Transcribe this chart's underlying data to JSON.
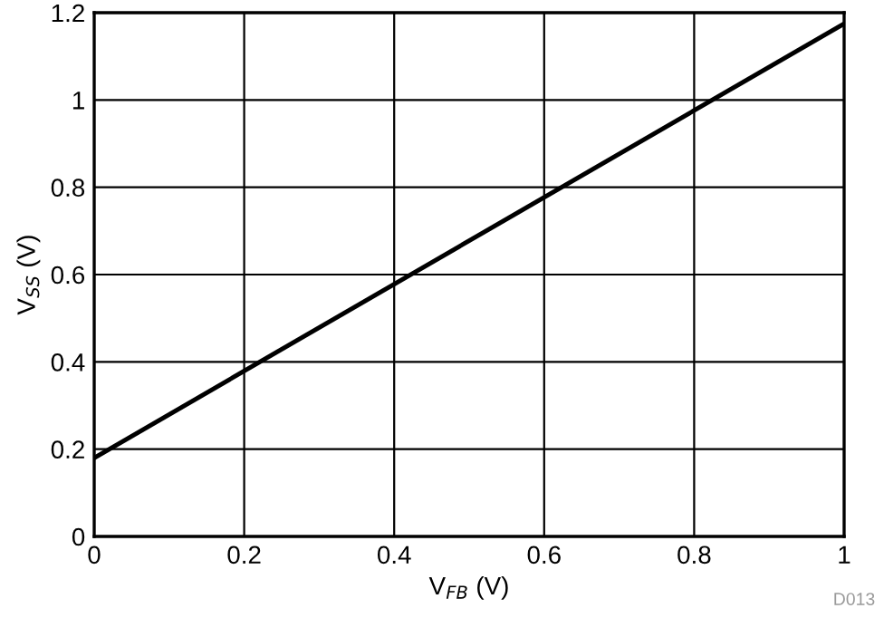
{
  "chart_data": {
    "type": "line",
    "xlabel": "V$_{FB}$ (V)",
    "ylabel": "V$_{SS}$ (V)",
    "x": [
      0,
      1
    ],
    "series": [
      {
        "color": "#000000",
        "values": [
          0.18,
          1.175
        ]
      }
    ],
    "xlim": [
      0,
      1
    ],
    "ylim": [
      0,
      1.2
    ],
    "xticks": [
      0,
      0.2,
      0.4,
      0.6,
      0.8,
      1
    ],
    "yticks": [
      0,
      0.2,
      0.4,
      0.6,
      0.8,
      1,
      1.2
    ],
    "grid": true,
    "legend": false,
    "marker": "none",
    "line_style": "solid",
    "annotations": [
      "D013"
    ]
  }
}
